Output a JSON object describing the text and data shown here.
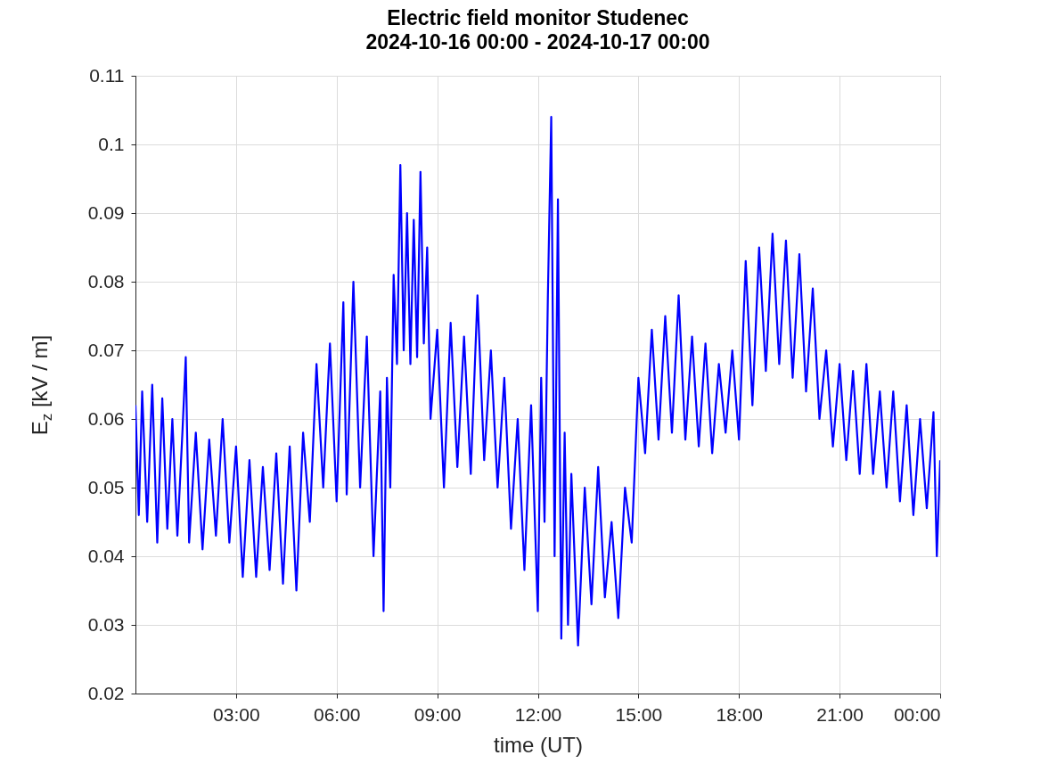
{
  "chart_data": {
    "type": "line",
    "title": "Electric field monitor Studenec",
    "subtitle": "2024-10-16 00:00 - 2024-10-17 00:00",
    "xlabel": "time (UT)",
    "ylabel": "E$_{z}$ [kV / m]",
    "x": [
      0,
      0.1,
      0.2,
      0.35,
      0.5,
      0.65,
      0.8,
      0.95,
      1.1,
      1.25,
      1.4,
      1.5,
      1.6,
      1.8,
      2.0,
      2.2,
      2.4,
      2.6,
      2.8,
      3.0,
      3.2,
      3.4,
      3.6,
      3.8,
      4.0,
      4.2,
      4.4,
      4.6,
      4.8,
      5.0,
      5.2,
      5.4,
      5.6,
      5.8,
      6.0,
      6.2,
      6.3,
      6.5,
      6.7,
      6.9,
      7.1,
      7.3,
      7.4,
      7.5,
      7.6,
      7.7,
      7.8,
      7.9,
      8.0,
      8.1,
      8.2,
      8.3,
      8.4,
      8.5,
      8.6,
      8.7,
      8.8,
      9.0,
      9.2,
      9.4,
      9.6,
      9.8,
      10.0,
      10.2,
      10.4,
      10.6,
      10.8,
      11.0,
      11.2,
      11.4,
      11.6,
      11.8,
      12.0,
      12.1,
      12.2,
      12.3,
      12.4,
      12.5,
      12.6,
      12.7,
      12.8,
      12.9,
      13.0,
      13.2,
      13.4,
      13.6,
      13.8,
      14.0,
      14.2,
      14.4,
      14.6,
      14.8,
      15.0,
      15.2,
      15.4,
      15.6,
      15.8,
      16.0,
      16.2,
      16.4,
      16.6,
      16.8,
      17.0,
      17.2,
      17.4,
      17.6,
      17.8,
      18.0,
      18.2,
      18.4,
      18.6,
      18.8,
      19.0,
      19.2,
      19.4,
      19.6,
      19.8,
      20.0,
      20.2,
      20.4,
      20.6,
      20.8,
      21.0,
      21.2,
      21.4,
      21.6,
      21.8,
      22.0,
      22.2,
      22.4,
      22.6,
      22.8,
      23.0,
      23.2,
      23.4,
      23.6,
      23.8,
      23.9,
      24.0
    ],
    "series": [
      {
        "color": "#0000ff",
        "values": [
          0.062,
          0.046,
          0.064,
          0.045,
          0.065,
          0.042,
          0.063,
          0.044,
          0.06,
          0.043,
          0.058,
          0.069,
          0.042,
          0.058,
          0.041,
          0.057,
          0.043,
          0.06,
          0.042,
          0.056,
          0.037,
          0.054,
          0.037,
          0.053,
          0.038,
          0.055,
          0.036,
          0.056,
          0.035,
          0.058,
          0.045,
          0.068,
          0.05,
          0.071,
          0.048,
          0.077,
          0.049,
          0.08,
          0.05,
          0.072,
          0.04,
          0.064,
          0.032,
          0.066,
          0.05,
          0.081,
          0.068,
          0.097,
          0.07,
          0.09,
          0.068,
          0.089,
          0.069,
          0.096,
          0.071,
          0.085,
          0.06,
          0.073,
          0.05,
          0.074,
          0.053,
          0.072,
          0.052,
          0.078,
          0.054,
          0.07,
          0.05,
          0.066,
          0.044,
          0.06,
          0.038,
          0.062,
          0.032,
          0.066,
          0.045,
          0.078,
          0.104,
          0.04,
          0.092,
          0.028,
          0.058,
          0.03,
          0.052,
          0.027,
          0.05,
          0.033,
          0.053,
          0.034,
          0.045,
          0.031,
          0.05,
          0.042,
          0.066,
          0.055,
          0.073,
          0.057,
          0.075,
          0.058,
          0.078,
          0.057,
          0.072,
          0.056,
          0.071,
          0.055,
          0.068,
          0.058,
          0.07,
          0.057,
          0.083,
          0.062,
          0.085,
          0.067,
          0.087,
          0.068,
          0.086,
          0.066,
          0.084,
          0.064,
          0.079,
          0.06,
          0.07,
          0.056,
          0.068,
          0.054,
          0.067,
          0.052,
          0.068,
          0.052,
          0.064,
          0.05,
          0.064,
          0.048,
          0.062,
          0.046,
          0.06,
          0.047,
          0.061,
          0.04,
          0.054
        ]
      }
    ],
    "xlim": [
      0,
      24
    ],
    "xticks": [
      {
        "value": 3,
        "label": "03:00"
      },
      {
        "value": 6,
        "label": "06:00"
      },
      {
        "value": 9,
        "label": "09:00"
      },
      {
        "value": 12,
        "label": "12:00"
      },
      {
        "value": 15,
        "label": "15:00"
      },
      {
        "value": 18,
        "label": "18:00"
      },
      {
        "value": 21,
        "label": "21:00"
      },
      {
        "value": 24,
        "label": "00:00"
      }
    ],
    "ylim": [
      0.02,
      0.11
    ],
    "yticks": [
      0.02,
      0.03,
      0.04,
      0.05,
      0.06,
      0.07,
      0.08,
      0.09,
      0.1,
      0.11
    ],
    "grid": true
  }
}
